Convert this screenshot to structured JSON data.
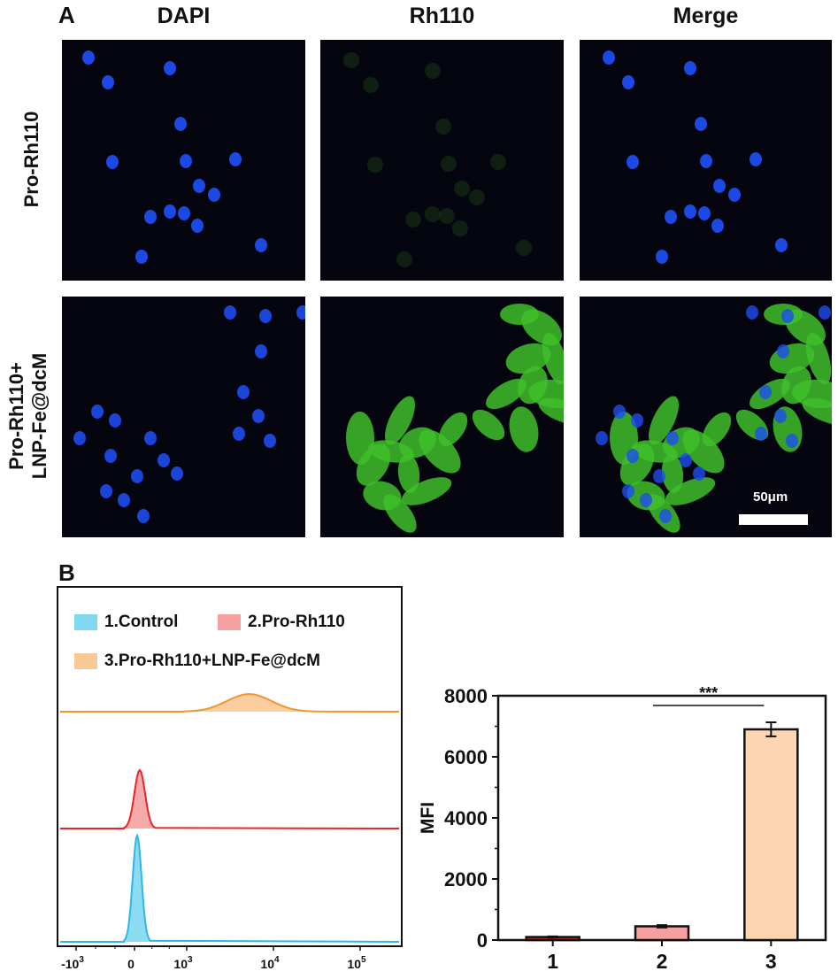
{
  "panel_a": {
    "letter": "A",
    "columns": [
      "DAPI",
      "Rh110",
      "Merge"
    ],
    "rows": [
      {
        "label_lines": [
          "Pro-Rh110"
        ]
      },
      {
        "label_lines": [
          "Pro-Rh110+",
          "LNP-Fe@dcM"
        ]
      }
    ],
    "scale_bar_label": "50μm",
    "colors": {
      "dapi": "#1e4cf0",
      "rh110": "#3fbf2a",
      "background": "#050510"
    }
  },
  "panel_b": {
    "letter": "B",
    "legend": [
      {
        "label": "1.Control",
        "color": "#7fd8f0"
      },
      {
        "label": "2.Pro-Rh110",
        "color": "#f4a0a0"
      },
      {
        "label": "3.Pro-Rh110+LNP-Fe@dcM",
        "color": "#f8c896"
      }
    ],
    "hist_x_ticks": [
      {
        "base": "-10",
        "exp": "3"
      },
      {
        "base": "0",
        "exp": ""
      },
      {
        "base": "10",
        "exp": "3"
      },
      {
        "base": "10",
        "exp": "4"
      },
      {
        "base": "10",
        "exp": "5"
      }
    ]
  },
  "chart_data": [
    {
      "type": "area",
      "description_kind": "flow cytometry histogram overlay",
      "series": [
        {
          "name": "1.Control",
          "color": "#2bb8e8",
          "fill": "#7fd8f0",
          "peak_x_log": 0.05
        },
        {
          "name": "2.Pro-Rh110",
          "color": "#e8262a",
          "fill": "#f4a0a0",
          "peak_x_log": 0.2
        },
        {
          "name": "3.Pro-Rh110+LNP-Fe@dcM",
          "color": "#f0962a",
          "fill": "#f8c896",
          "peak_x_log": 3.7
        }
      ]
    },
    {
      "type": "bar",
      "categories": [
        "1",
        "2",
        "3"
      ],
      "values": [
        100,
        450,
        6900
      ],
      "errors": [
        20,
        40,
        230
      ],
      "colors": [
        "#c0392b",
        "#f4a0a0",
        "#fdd5b0"
      ],
      "ylabel": "MFI",
      "xlabel": "",
      "ylim": [
        0,
        8000
      ],
      "yticks": [
        "0",
        "2000",
        "4000",
        "6000",
        "8000"
      ],
      "significance": {
        "between": [
          "2",
          "3"
        ],
        "label": "***"
      }
    }
  ]
}
